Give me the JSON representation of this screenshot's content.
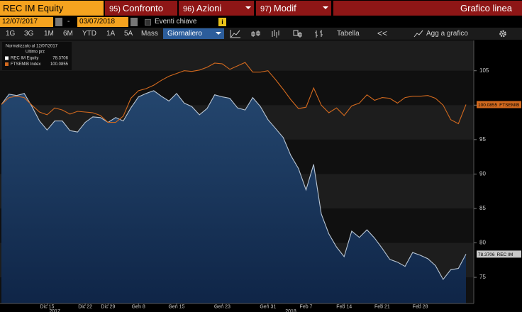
{
  "header": {
    "ticker": "REC IM Equity",
    "menus": [
      {
        "num": "95)",
        "label": "Confronto"
      },
      {
        "num": "96)",
        "label": "Azioni"
      },
      {
        "num": "97)",
        "label": "Modif"
      }
    ],
    "chart_label": "Grafico linea"
  },
  "dates": {
    "start": "12/07/2017",
    "separator": "-",
    "end": "03/07/2018",
    "events": "Eventi chiave",
    "info": "i"
  },
  "toolbar": {
    "periods": [
      "1G",
      "3G",
      "1M",
      "6M",
      "YTD",
      "1A",
      "5A",
      "Mass"
    ],
    "frequency": "Giornaliero",
    "table": "Tabella",
    "back": "<<",
    "add": "Agg a grafico"
  },
  "chart_data": {
    "type": "line",
    "legend_title": "Normalizzato al 12/07/2017",
    "legend_subtitle": "Ultimo prz",
    "categories": [
      null,
      null,
      null,
      null,
      null,
      null,
      "Dic 15",
      null,
      null,
      null,
      null,
      "Dic 22",
      null,
      null,
      "Dic 29",
      null,
      null,
      null,
      "Gen 8",
      null,
      null,
      null,
      null,
      "Gen 15",
      null,
      null,
      null,
      null,
      null,
      "Gen 23",
      null,
      null,
      null,
      null,
      null,
      "Gen 31",
      null,
      null,
      null,
      null,
      "Feb 7",
      null,
      null,
      null,
      null,
      "Feb 14",
      null,
      null,
      null,
      null,
      "Feb 21",
      null,
      null,
      null,
      null,
      "Feb 28",
      null,
      null,
      null,
      null,
      null,
      null
    ],
    "xgroups": [
      {
        "value": 7,
        "label": "2017"
      },
      {
        "value": 38,
        "label": "2018"
      }
    ],
    "series": [
      {
        "name": "REC IM Equity",
        "tag": "REC IM",
        "color": "#b9c6d4",
        "area": true,
        "values": [
          100.1,
          101.6,
          101.4,
          101.7,
          99.8,
          97.7,
          96.4,
          97.7,
          97.7,
          96.3,
          96.1,
          97.5,
          98.3,
          98.2,
          97.5,
          98.2,
          97.7,
          99.6,
          101.2,
          101.7,
          102.1,
          101.3,
          100.6,
          101.7,
          100.3,
          99.8,
          98.6,
          99.5,
          101.5,
          101.2,
          101.0,
          99.6,
          99.3,
          101.1,
          99.8,
          97.9,
          96.6,
          95.3,
          92.7,
          90.8,
          87.7,
          91.4,
          84.2,
          81.3,
          79.4,
          78.0,
          81.7,
          80.8,
          81.9,
          80.7,
          79.2,
          77.6,
          77.2,
          76.6,
          78.6,
          78.2,
          77.7,
          76.7,
          74.7,
          76.1,
          76.3,
          78.3706
        ]
      },
      {
        "name": "FTSEMIB Index",
        "tag": "FTSEMIB",
        "color": "#d2691e",
        "area": false,
        "values": [
          100.1,
          101.1,
          101.3,
          101.1,
          100.0,
          99.0,
          98.6,
          99.6,
          99.3,
          98.7,
          99.1,
          99.0,
          98.9,
          98.5,
          97.5,
          97.5,
          98.4,
          101.0,
          102.1,
          102.4,
          102.9,
          103.6,
          104.2,
          104.6,
          105.0,
          104.9,
          105.1,
          105.5,
          106.1,
          106.0,
          105.2,
          105.7,
          106.2,
          104.8,
          104.8,
          105.0,
          103.7,
          102.3,
          100.8,
          99.5,
          99.7,
          102.5,
          100.0,
          98.9,
          99.6,
          98.5,
          99.9,
          100.3,
          101.5,
          100.7,
          101.1,
          101.0,
          100.3,
          101.1,
          101.3,
          101.3,
          101.4,
          101.0,
          100.0,
          97.9,
          97.3,
          100.0855
        ]
      }
    ],
    "ylim": [
      71.2,
      109.4
    ],
    "yticks": [
      75,
      80,
      85,
      90,
      95,
      100,
      105
    ]
  }
}
